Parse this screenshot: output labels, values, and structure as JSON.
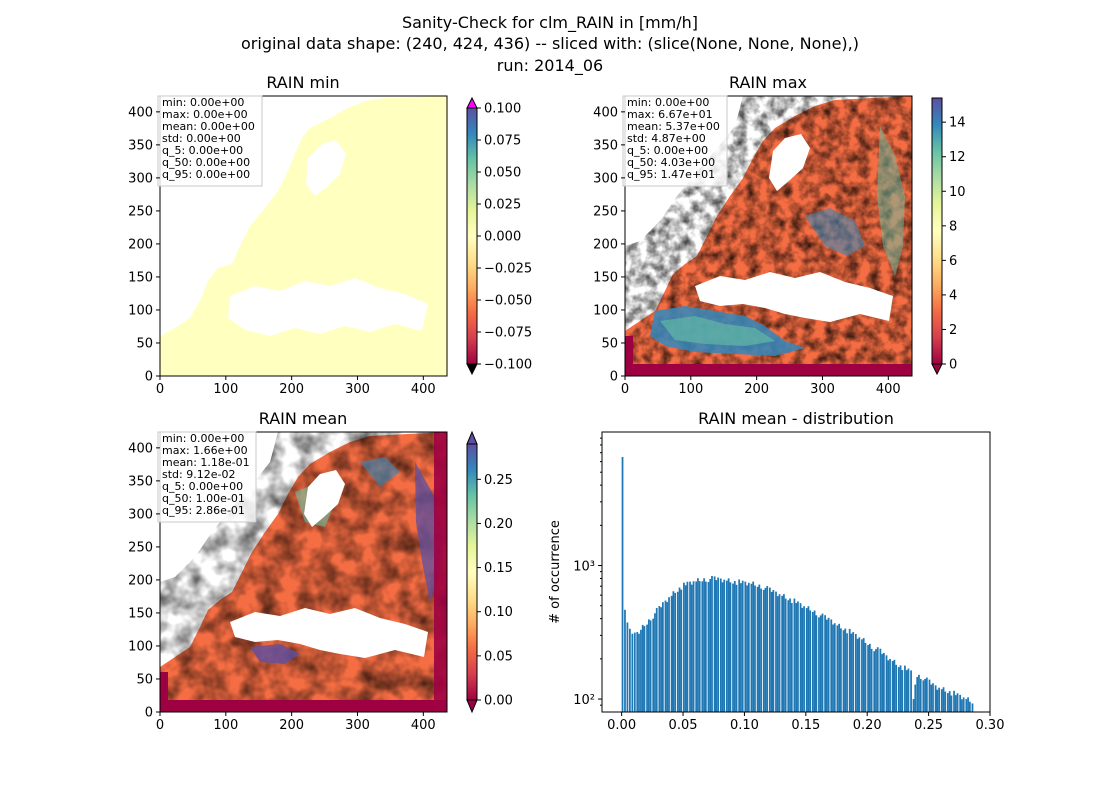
{
  "suptitle": {
    "line1": "Sanity-Check for clm_RAIN in [mm/h]",
    "line2": "original data shape: (240, 424, 436) -- sliced with: (slice(None, None, None),)",
    "line3": "run: 2014_06"
  },
  "chart_data": [
    {
      "type": "heatmap",
      "title": "RAIN min",
      "xlabel": "",
      "ylabel": "",
      "xlim": [
        0,
        436
      ],
      "ylim": [
        0,
        424
      ],
      "x_ticks": [
        "0",
        "100",
        "200",
        "300",
        "400"
      ],
      "y_ticks": [
        "0",
        "50",
        "100",
        "150",
        "200",
        "250",
        "300",
        "350",
        "400"
      ],
      "colormap": "Spectral",
      "uniform_color": "#ffffbf",
      "colorbar": {
        "min": -0.1,
        "max": 0.1,
        "extend": "both",
        "ticks": [
          "0.100",
          "0.075",
          "0.050",
          "0.025",
          "0.000",
          "−0.025",
          "−0.050",
          "−0.075",
          "−0.100"
        ]
      },
      "stats": [
        "min: 0.00e+00",
        "max: 0.00e+00",
        "mean: 0.00e+00",
        "std: 0.00e+00",
        "q_5: 0.00e+00",
        "q_50: 0.00e+00",
        "q_95: 0.00e+00"
      ]
    },
    {
      "type": "heatmap",
      "title": "RAIN max",
      "xlabel": "",
      "ylabel": "",
      "xlim": [
        0,
        436
      ],
      "ylim": [
        0,
        424
      ],
      "x_ticks": [
        "0",
        "100",
        "200",
        "300",
        "400"
      ],
      "y_ticks": [
        "0",
        "50",
        "100",
        "150",
        "200",
        "250",
        "300",
        "350",
        "400"
      ],
      "colormap": "Spectral",
      "colorbar": {
        "min": 0,
        "max": 15.4,
        "extend": "min",
        "ticks": [
          "14",
          "12",
          "10",
          "8",
          "6",
          "4",
          "2",
          "0"
        ]
      },
      "stats": [
        "min: 0.00e+00",
        "max: 6.67e+01",
        "mean: 5.37e+00",
        "std: 4.87e+00",
        "q_5: 0.00e+00",
        "q_50: 4.03e+00",
        "q_95: 1.47e+01"
      ]
    },
    {
      "type": "heatmap",
      "title": "RAIN mean",
      "xlabel": "",
      "ylabel": "",
      "xlim": [
        0,
        436
      ],
      "ylim": [
        0,
        424
      ],
      "x_ticks": [
        "0",
        "100",
        "200",
        "300",
        "400"
      ],
      "y_ticks": [
        "0",
        "50",
        "100",
        "150",
        "200",
        "250",
        "300",
        "350",
        "400"
      ],
      "colormap": "Spectral",
      "colorbar": {
        "min": 0,
        "max": 0.29,
        "extend": "min",
        "ticks": [
          "0.25",
          "0.20",
          "0.15",
          "0.10",
          "0.05",
          "0.00"
        ]
      },
      "stats": [
        "min: 0.00e+00",
        "max: 1.66e+00",
        "mean: 1.18e-01",
        "std: 9.12e-02",
        "q_5: 0.00e+00",
        "q_50: 1.00e-01",
        "q_95: 2.86e-01"
      ]
    },
    {
      "type": "bar",
      "title": "RAIN mean - distribution",
      "xlabel": "",
      "ylabel": "# of occurrence",
      "yscale": "log",
      "color": "#1f77b4",
      "xlim": [
        -0.016,
        0.3
      ],
      "ylim": [
        80,
        10000
      ],
      "x_ticks": [
        "0.00",
        "0.05",
        "0.10",
        "0.15",
        "0.20",
        "0.25",
        "0.30"
      ],
      "y_ticks": [
        "10²",
        "10³"
      ],
      "bin_width": 0.00143,
      "x": [
        0.0,
        0.002,
        0.004,
        0.006,
        0.008,
        0.01,
        0.012,
        0.015,
        0.02,
        0.025,
        0.03,
        0.035,
        0.04,
        0.045,
        0.05,
        0.055,
        0.06,
        0.065,
        0.07,
        0.075,
        0.08,
        0.085,
        0.09,
        0.095,
        0.1,
        0.105,
        0.11,
        0.115,
        0.12,
        0.125,
        0.13,
        0.135,
        0.14,
        0.145,
        0.15,
        0.155,
        0.16,
        0.165,
        0.17,
        0.175,
        0.18,
        0.185,
        0.19,
        0.195,
        0.2,
        0.205,
        0.21,
        0.215,
        0.22,
        0.225,
        0.23,
        0.235,
        0.237,
        0.24,
        0.245,
        0.25,
        0.255,
        0.26,
        0.265,
        0.27,
        0.275,
        0.28,
        0.285
      ],
      "values": [
        6500,
        450,
        370,
        340,
        320,
        300,
        310,
        330,
        370,
        420,
        480,
        540,
        600,
        660,
        710,
        740,
        760,
        780,
        790,
        800,
        790,
        780,
        760,
        750,
        740,
        730,
        710,
        690,
        660,
        630,
        600,
        570,
        540,
        510,
        480,
        460,
        430,
        410,
        390,
        360,
        340,
        320,
        300,
        280,
        260,
        240,
        230,
        210,
        195,
        180,
        170,
        160,
        100,
        150,
        145,
        135,
        125,
        120,
        115,
        110,
        105,
        100,
        95
      ]
    }
  ]
}
